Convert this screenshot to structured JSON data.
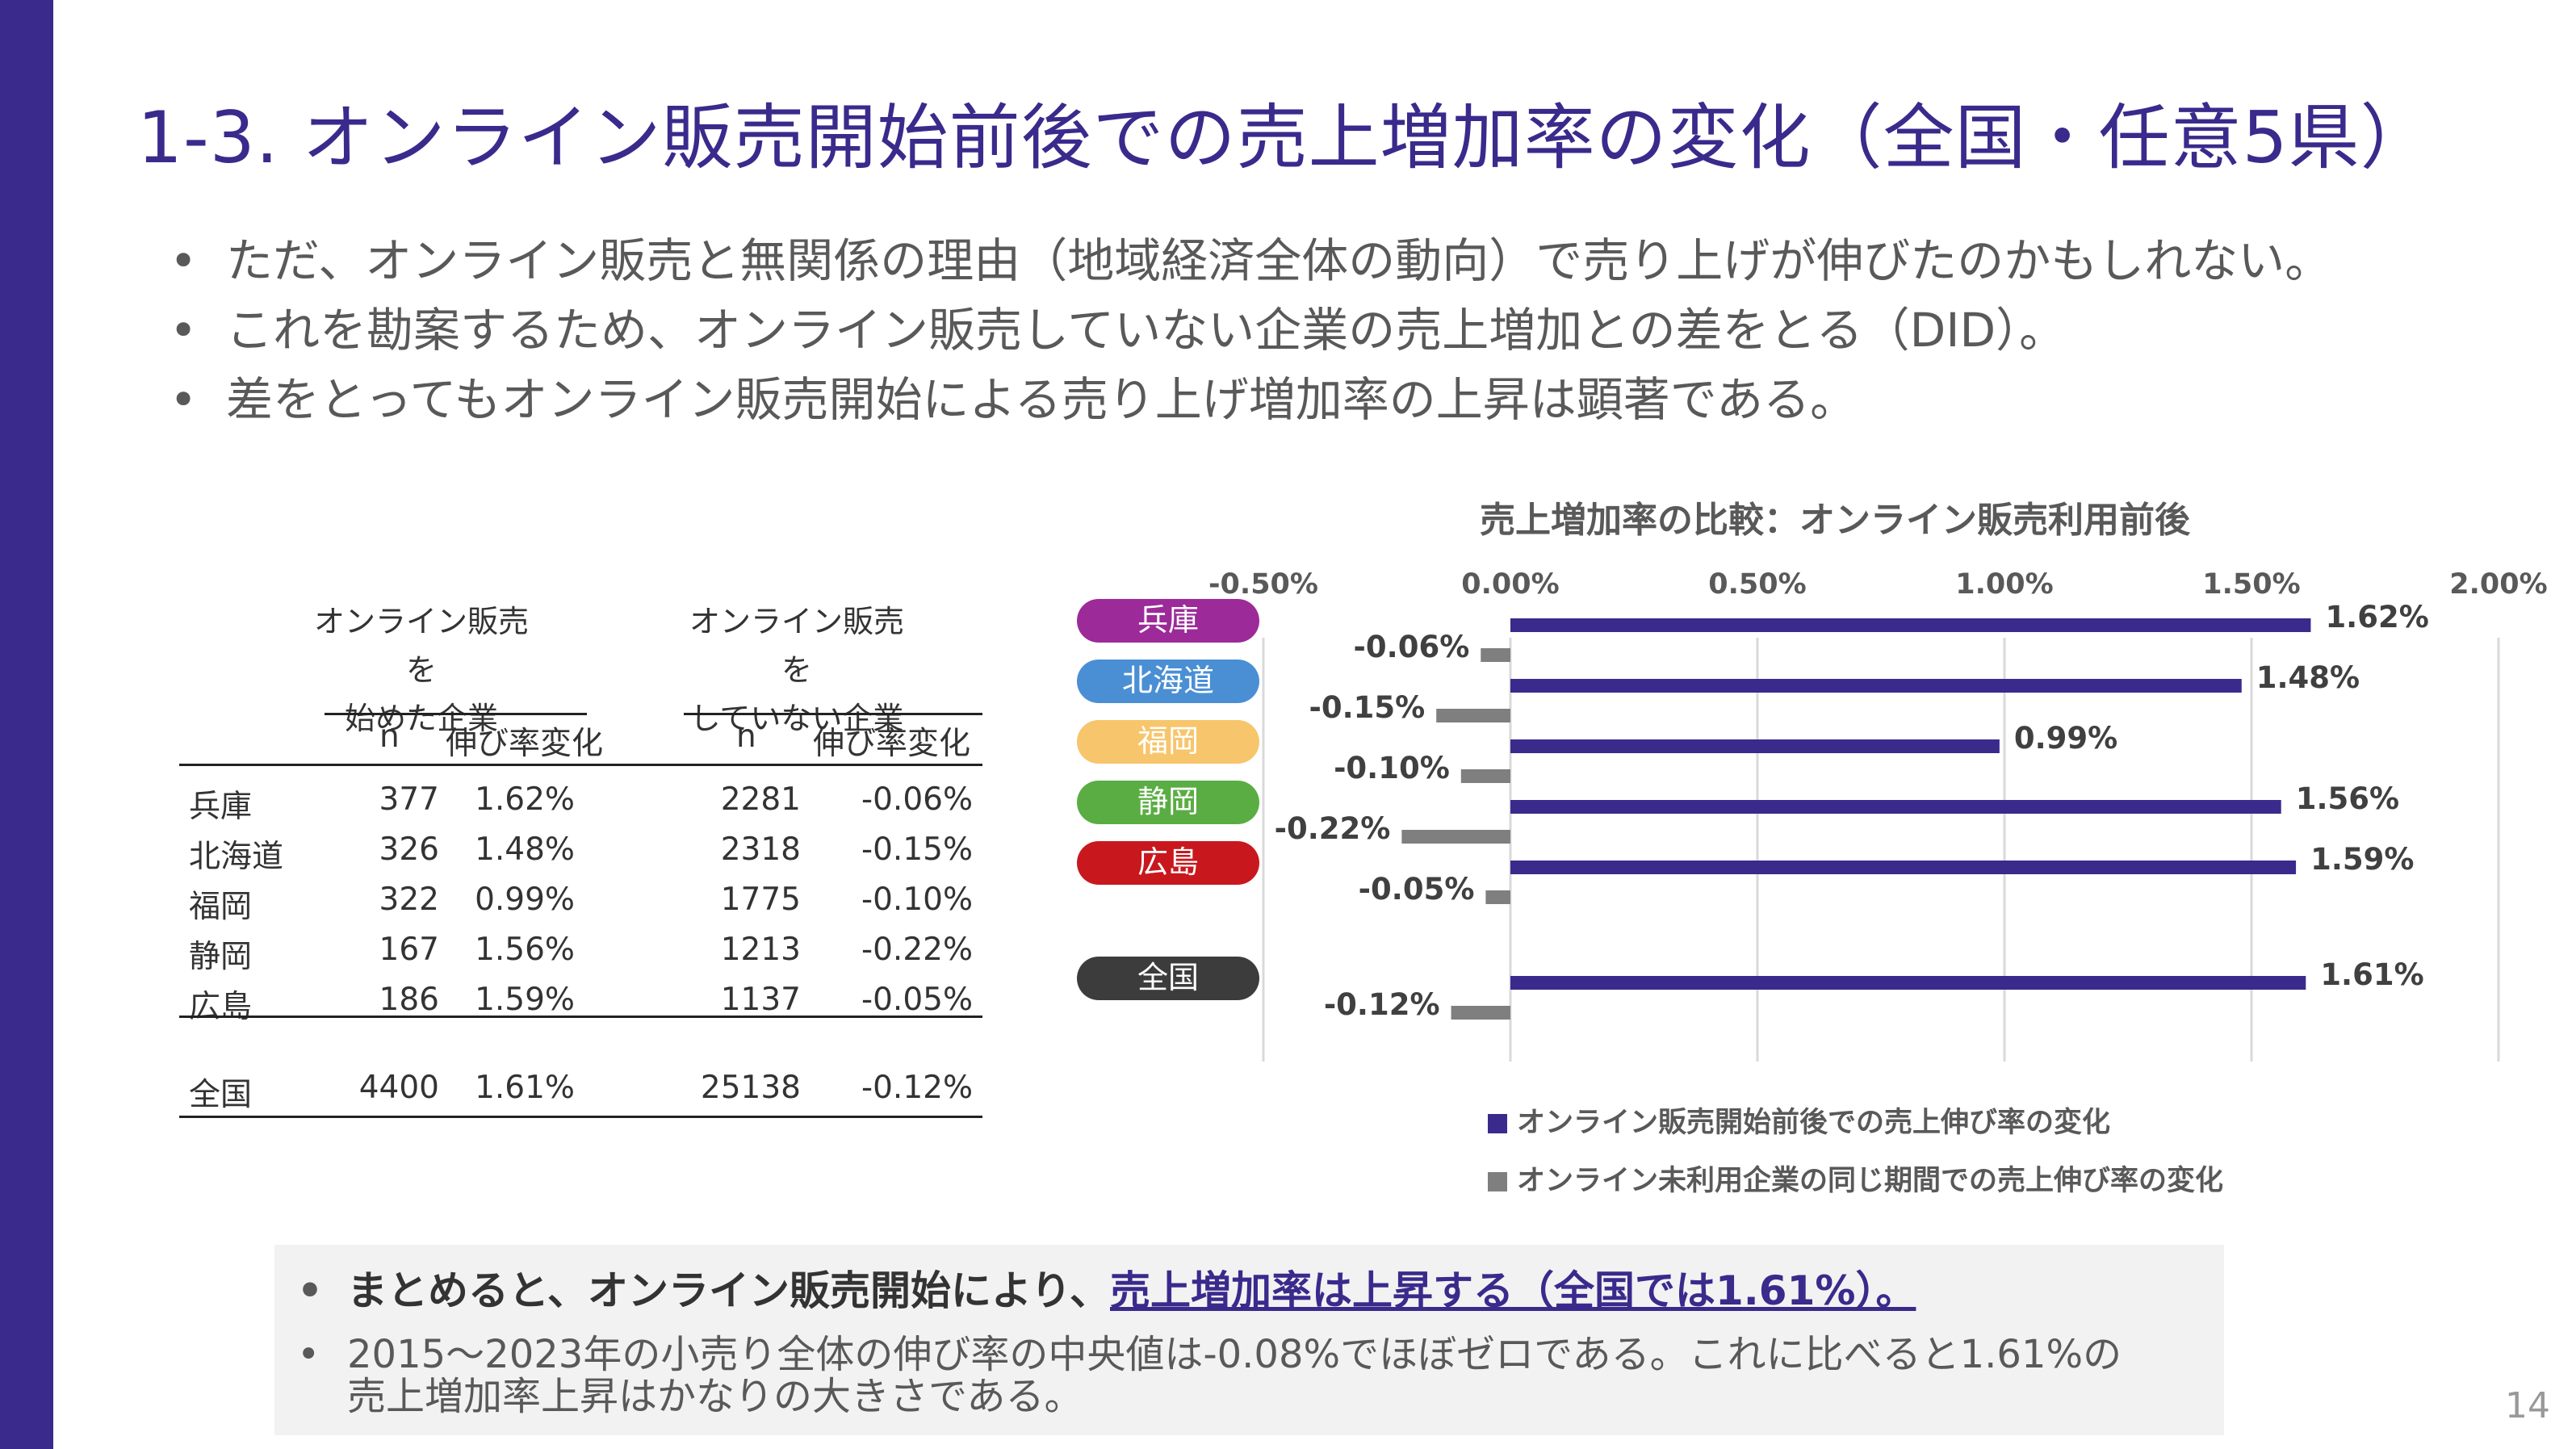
{
  "title": "1-3. オンライン販売開始前後での売上増加率の変化（全国・任意5県）",
  "bullets": [
    "ただ、オンライン販売と無関係の理由（地域経済全体の動向）で売り上げが伸びたのかもしれない。",
    "これを勘案するため、オンライン販売していない企業の売上増加との差をとる（DID）。",
    "差をとってもオンライン販売開始による売り上げ増加率の上昇は顕著である。"
  ],
  "table": {
    "group1": "オンライン販売を\n始めた企業",
    "group2": "オンライン販売を\nしていない企業",
    "col_n": "n",
    "col_rate": "伸び率変化",
    "rows": [
      {
        "region": "兵庫",
        "n1": "377",
        "r1": "1.62%",
        "n2": "2281",
        "r2": "-0.06%"
      },
      {
        "region": "北海道",
        "n1": "326",
        "r1": "1.48%",
        "n2": "2318",
        "r2": "-0.15%"
      },
      {
        "region": "福岡",
        "n1": "322",
        "r1": "0.99%",
        "n2": "1775",
        "r2": "-0.10%"
      },
      {
        "region": "静岡",
        "n1": "167",
        "r1": "1.56%",
        "n2": "1213",
        "r2": "-0.22%"
      },
      {
        "region": "広島",
        "n1": "186",
        "r1": "1.59%",
        "n2": "1137",
        "r2": "-0.05%"
      }
    ],
    "total": {
      "region": "全国",
      "n1": "4400",
      "r1": "1.61%",
      "n2": "25138",
      "r2": "-0.12%"
    }
  },
  "chart_data": {
    "type": "bar",
    "orientation": "horizontal",
    "title": "売上増加率の比較：オンライン販売利用前後",
    "categories": [
      "兵庫",
      "北海道",
      "福岡",
      "静岡",
      "広島",
      "全国"
    ],
    "category_colors": [
      "#9c2a99",
      "#4a8fd4",
      "#f7c56b",
      "#5aad43",
      "#c8181e",
      "#3c3c3c"
    ],
    "series": [
      {
        "name": "オンライン販売開始前後での売上伸び率の変化",
        "color": "#3a2a8c",
        "values": [
          1.62,
          1.48,
          0.99,
          1.56,
          1.59,
          1.61
        ],
        "labels": [
          "1.62%",
          "1.48%",
          "0.99%",
          "1.56%",
          "1.59%",
          "1.61%"
        ]
      },
      {
        "name": "オンライン未利用企業の同じ期間での売上伸び率の変化",
        "color": "#7f7f7f",
        "values": [
          -0.06,
          -0.15,
          -0.1,
          -0.22,
          -0.05,
          -0.12
        ],
        "labels": [
          "-0.06%",
          "-0.15%",
          "-0.10%",
          "-0.22%",
          "-0.05%",
          "-0.12%"
        ]
      }
    ],
    "xlim": [
      -0.5,
      2.0
    ],
    "xticks": [
      "-0.50%",
      "0.00%",
      "0.50%",
      "1.00%",
      "1.50%",
      "2.00%"
    ],
    "xtick_values": [
      -0.5,
      0,
      0.5,
      1.0,
      1.5,
      2.0
    ],
    "grid": true,
    "legend_position": "bottom"
  },
  "summary": {
    "line1_prefix": "まとめると、オンライン販売開始により、",
    "line1_highlight": "売上増加率は上昇する（全国では1.61%）。",
    "line2a": "2015～2023年の小売り全体の伸び率の中央値は-0.08%でほぼゼロである。これに比べると1.61%の",
    "line2b": "売上増加率上昇はかなりの大きさである。"
  },
  "page_number": "14"
}
